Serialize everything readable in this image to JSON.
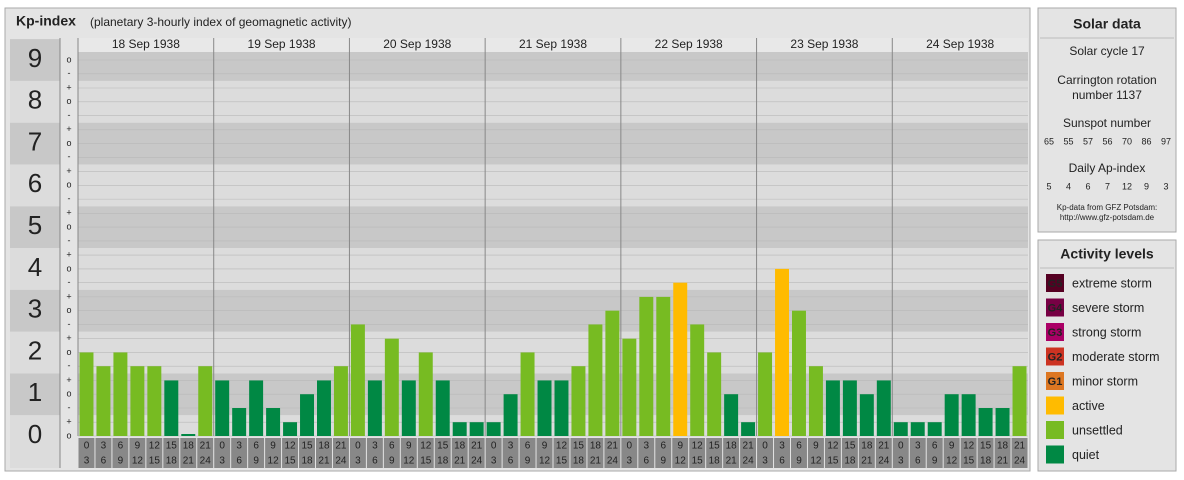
{
  "chart_data": {
    "type": "bar",
    "title": "Kp-index",
    "subtitle": "(planetary 3-hourly index of geomagnetic activity)",
    "ylim": [
      0,
      9
    ],
    "yticks": [
      0,
      1,
      2,
      3,
      4,
      5,
      6,
      7,
      8,
      9
    ],
    "sub_ticks": [
      {
        "value": 0,
        "label": "o"
      },
      {
        "value": 0.33,
        "label": "+"
      },
      {
        "value": 0.67,
        "label": "-"
      },
      {
        "value": 1,
        "label": "o"
      },
      {
        "value": 1.33,
        "label": "+"
      },
      {
        "value": 1.67,
        "label": "-"
      },
      {
        "value": 2,
        "label": "o"
      },
      {
        "value": 2.33,
        "label": "+"
      },
      {
        "value": 2.67,
        "label": "-"
      },
      {
        "value": 3,
        "label": "o"
      },
      {
        "value": 3.33,
        "label": "+"
      },
      {
        "value": 3.67,
        "label": "-"
      },
      {
        "value": 4,
        "label": "o"
      },
      {
        "value": 4.33,
        "label": "+"
      },
      {
        "value": 4.67,
        "label": "-"
      },
      {
        "value": 5,
        "label": "o"
      },
      {
        "value": 5.33,
        "label": "+"
      },
      {
        "value": 5.67,
        "label": "-"
      },
      {
        "value": 6,
        "label": "o"
      },
      {
        "value": 6.33,
        "label": "+"
      },
      {
        "value": 6.67,
        "label": "-"
      },
      {
        "value": 7,
        "label": "o"
      },
      {
        "value": 7.33,
        "label": "+"
      },
      {
        "value": 7.67,
        "label": "-"
      },
      {
        "value": 8,
        "label": "o"
      },
      {
        "value": 8.33,
        "label": "+"
      },
      {
        "value": 8.67,
        "label": "-"
      },
      {
        "value": 9,
        "label": "o"
      }
    ],
    "slot_start": [
      "0",
      "3",
      "6",
      "9",
      "12",
      "15",
      "18",
      "21"
    ],
    "slot_end": [
      "3",
      "6",
      "9",
      "12",
      "15",
      "18",
      "21",
      "24"
    ],
    "days": [
      {
        "date": "18 Sep 1938",
        "values": [
          2,
          1.67,
          2,
          1.67,
          1.67,
          1.33,
          0,
          1.67
        ],
        "colors": [
          "#77bb22",
          "#77bb22",
          "#77bb22",
          "#77bb22",
          "#77bb22",
          "#008844",
          "#008844",
          "#77bb22"
        ]
      },
      {
        "date": "19 Sep 1938",
        "values": [
          1.33,
          0.67,
          1.33,
          0.67,
          0.33,
          1,
          1.33,
          1.67
        ],
        "colors": [
          "#008844",
          "#008844",
          "#008844",
          "#008844",
          "#008844",
          "#008844",
          "#008844",
          "#77bb22"
        ]
      },
      {
        "date": "20 Sep 1938",
        "values": [
          2.67,
          1.33,
          2.33,
          1.33,
          2,
          1.33,
          0.33,
          0.33
        ],
        "colors": [
          "#77bb22",
          "#008844",
          "#77bb22",
          "#008844",
          "#77bb22",
          "#008844",
          "#008844",
          "#008844"
        ]
      },
      {
        "date": "21 Sep 1938",
        "values": [
          0.33,
          1,
          2,
          1.33,
          1.33,
          1.67,
          2.67,
          3
        ],
        "colors": [
          "#008844",
          "#008844",
          "#77bb22",
          "#008844",
          "#008844",
          "#77bb22",
          "#77bb22",
          "#77bb22"
        ]
      },
      {
        "date": "22 Sep 1938",
        "values": [
          2.33,
          3.33,
          3.33,
          3.67,
          2.67,
          2,
          1,
          0.33
        ],
        "colors": [
          "#77bb22",
          "#77bb22",
          "#77bb22",
          "#ffbb00",
          "#77bb22",
          "#77bb22",
          "#008844",
          "#008844"
        ]
      },
      {
        "date": "23 Sep 1938",
        "values": [
          2,
          4,
          3,
          1.67,
          1.33,
          1.33,
          1,
          1.33
        ],
        "colors": [
          "#77bb22",
          "#ffbb00",
          "#77bb22",
          "#77bb22",
          "#008844",
          "#008844",
          "#008844",
          "#008844"
        ]
      },
      {
        "date": "24 Sep 1938",
        "values": [
          0.33,
          0.33,
          0.33,
          1,
          1,
          0.67,
          0.67,
          1.67
        ],
        "colors": [
          "#008844",
          "#008844",
          "#008844",
          "#008844",
          "#008844",
          "#008844",
          "#008844",
          "#77bb22"
        ]
      }
    ]
  },
  "solar": {
    "title": "Solar data",
    "cycle": "Solar cycle 17",
    "carrington": "Carrington rotation number 1137",
    "sunspot_title": "Sunspot number",
    "sunspot": [
      65,
      55,
      57,
      56,
      70,
      86,
      97
    ],
    "ap_title": "Daily Ap-index",
    "ap": [
      5,
      4,
      6,
      7,
      12,
      9,
      3
    ],
    "source": "Kp-data from GFZ Potsdam:",
    "source_url": "http://www.gfz-potsdam.de"
  },
  "levels": {
    "title": "Activity levels",
    "items": [
      {
        "badge": "G5",
        "name": "extreme storm",
        "color": "#550022"
      },
      {
        "badge": "G4",
        "name": "severe storm",
        "color": "#770044"
      },
      {
        "badge": "G3",
        "name": "strong storm",
        "color": "#aa0066"
      },
      {
        "badge": "G2",
        "name": "moderate storm",
        "color": "#cc3322"
      },
      {
        "badge": "G1",
        "name": "minor storm",
        "color": "#dd7722"
      },
      {
        "name": "active",
        "color": "#ffbb00"
      },
      {
        "name": "unsettled",
        "color": "#77bb22"
      },
      {
        "name": "quiet",
        "color": "#008844"
      }
    ]
  }
}
